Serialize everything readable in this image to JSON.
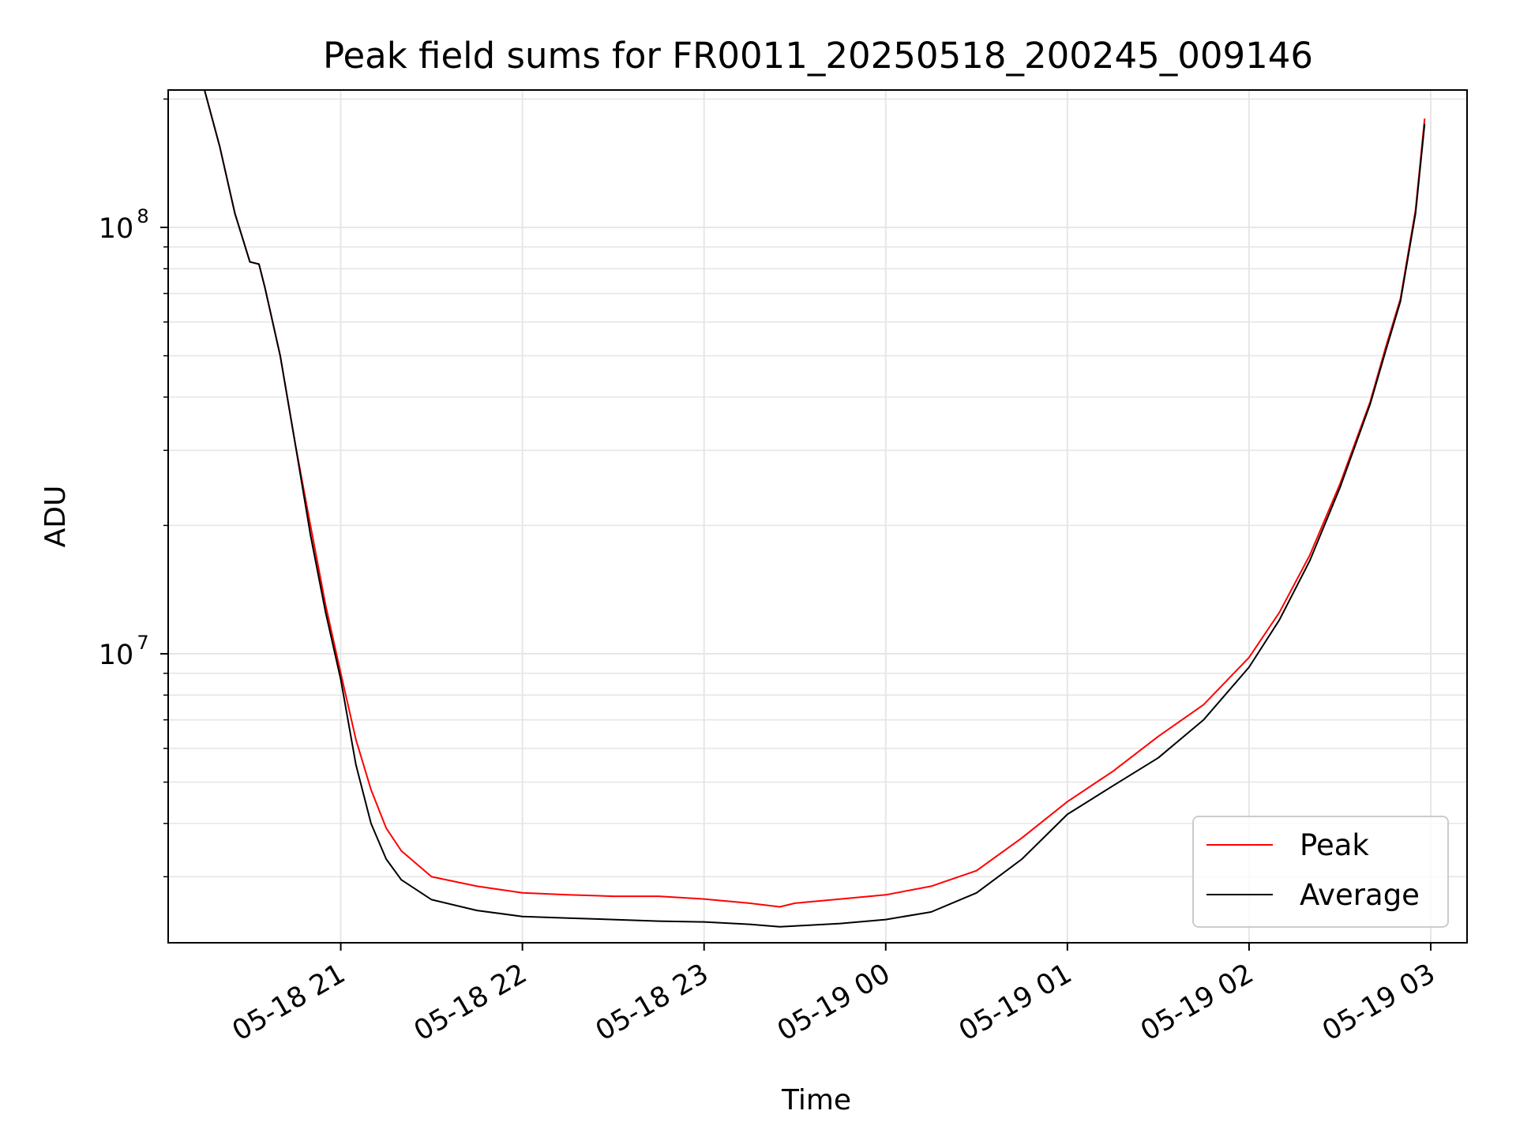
{
  "chart_data": {
    "type": "line",
    "title": "Peak field sums for FR0011_20250518_200245_009146",
    "xlabel": "Time",
    "ylabel": "ADU",
    "yscale": "log",
    "ylim": [
      2100000,
      210000000
    ],
    "xlim": [
      "2025-05-18 20:03",
      "2025-05-19 03:12"
    ],
    "x_ticks": [
      {
        "value": "2025-05-18 21:00",
        "label": "05-18 21"
      },
      {
        "value": "2025-05-18 22:00",
        "label": "05-18 22"
      },
      {
        "value": "2025-05-18 23:00",
        "label": "05-18 23"
      },
      {
        "value": "2025-05-19 00:00",
        "label": "05-19 00"
      },
      {
        "value": "2025-05-19 01:00",
        "label": "05-19 01"
      },
      {
        "value": "2025-05-19 02:00",
        "label": "05-19 02"
      },
      {
        "value": "2025-05-19 03:00",
        "label": "05-19 03"
      }
    ],
    "y_ticks": [
      {
        "value": 10000000,
        "base": "10",
        "exp": "7"
      },
      {
        "value": 100000000,
        "base": "10",
        "exp": "8"
      }
    ],
    "grid": true,
    "legend_position": "lower-right",
    "series": [
      {
        "name": "Peak",
        "color": "#ff0000",
        "x": [
          "2025-05-18 20:15",
          "2025-05-18 20:20",
          "2025-05-18 20:25",
          "2025-05-18 20:30",
          "2025-05-18 20:33",
          "2025-05-18 20:35",
          "2025-05-18 20:40",
          "2025-05-18 20:45",
          "2025-05-18 20:50",
          "2025-05-18 20:55",
          "2025-05-18 21:00",
          "2025-05-18 21:05",
          "2025-05-18 21:10",
          "2025-05-18 21:15",
          "2025-05-18 21:20",
          "2025-05-18 21:30",
          "2025-05-18 21:45",
          "2025-05-18 22:00",
          "2025-05-18 22:15",
          "2025-05-18 22:30",
          "2025-05-18 22:45",
          "2025-05-18 23:00",
          "2025-05-18 23:15",
          "2025-05-18 23:25",
          "2025-05-18 23:30",
          "2025-05-18 23:45",
          "2025-05-19 00:00",
          "2025-05-19 00:15",
          "2025-05-19 00:30",
          "2025-05-19 00:45",
          "2025-05-19 01:00",
          "2025-05-19 01:15",
          "2025-05-19 01:30",
          "2025-05-19 01:45",
          "2025-05-19 02:00",
          "2025-05-19 02:10",
          "2025-05-19 02:20",
          "2025-05-19 02:30",
          "2025-05-19 02:40",
          "2025-05-19 02:45",
          "2025-05-19 02:50",
          "2025-05-19 02:55",
          "2025-05-19 02:58"
        ],
        "values": [
          210000000,
          155000000,
          108000000,
          83000000,
          82000000,
          72000000,
          50000000,
          31000000,
          20000000,
          13000000,
          9000000,
          6300000,
          4800000,
          3900000,
          3450000,
          3000000,
          2850000,
          2750000,
          2720000,
          2700000,
          2700000,
          2660000,
          2600000,
          2550000,
          2600000,
          2660000,
          2720000,
          2850000,
          3100000,
          3700000,
          4500000,
          5300000,
          6400000,
          7600000,
          9800000,
          12500000,
          17000000,
          25000000,
          39000000,
          52000000,
          68000000,
          110000000,
          180000000
        ]
      },
      {
        "name": "Average",
        "color": "#000000",
        "x": [
          "2025-05-18 20:15",
          "2025-05-18 20:20",
          "2025-05-18 20:25",
          "2025-05-18 20:30",
          "2025-05-18 20:33",
          "2025-05-18 20:35",
          "2025-05-18 20:40",
          "2025-05-18 20:45",
          "2025-05-18 20:50",
          "2025-05-18 20:55",
          "2025-05-18 21:00",
          "2025-05-18 21:05",
          "2025-05-18 21:10",
          "2025-05-18 21:15",
          "2025-05-18 21:20",
          "2025-05-18 21:30",
          "2025-05-18 21:45",
          "2025-05-18 22:00",
          "2025-05-18 22:15",
          "2025-05-18 22:30",
          "2025-05-18 22:45",
          "2025-05-18 23:00",
          "2025-05-18 23:15",
          "2025-05-18 23:25",
          "2025-05-18 23:30",
          "2025-05-18 23:45",
          "2025-05-19 00:00",
          "2025-05-19 00:15",
          "2025-05-19 00:30",
          "2025-05-19 00:45",
          "2025-05-19 01:00",
          "2025-05-19 01:15",
          "2025-05-19 01:30",
          "2025-05-19 01:45",
          "2025-05-19 02:00",
          "2025-05-19 02:10",
          "2025-05-19 02:20",
          "2025-05-19 02:30",
          "2025-05-19 02:40",
          "2025-05-19 02:45",
          "2025-05-19 02:50",
          "2025-05-19 02:55",
          "2025-05-19 02:58"
        ],
        "values": [
          210000000,
          155000000,
          108000000,
          83000000,
          82000000,
          72000000,
          50000000,
          31000000,
          19000000,
          12500000,
          8700000,
          5500000,
          4000000,
          3300000,
          2950000,
          2650000,
          2500000,
          2420000,
          2400000,
          2380000,
          2360000,
          2350000,
          2320000,
          2290000,
          2300000,
          2330000,
          2380000,
          2480000,
          2750000,
          3300000,
          4200000,
          4900000,
          5700000,
          7000000,
          9300000,
          12000000,
          16500000,
          24500000,
          38500000,
          51000000,
          67000000,
          108000000,
          175000000
        ]
      }
    ]
  }
}
